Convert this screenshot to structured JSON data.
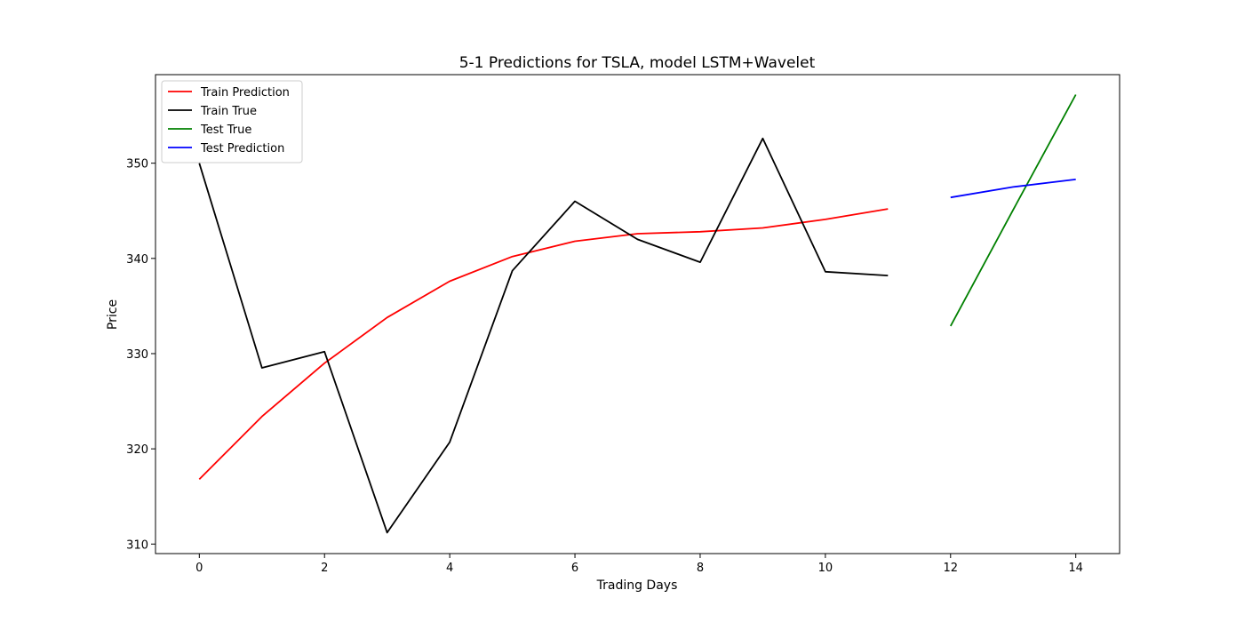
{
  "chart_data": {
    "type": "line",
    "title": "5-1 Predictions for TSLA, model LSTM+Wavelet",
    "xlabel": "Trading Days",
    "ylabel": "Price",
    "xlim": [
      -0.7,
      14.7
    ],
    "ylim": [
      309,
      359.3
    ],
    "xticks": [
      0,
      2,
      4,
      6,
      8,
      10,
      12,
      14
    ],
    "yticks": [
      310,
      320,
      330,
      340,
      350
    ],
    "grid": false,
    "legend_position": "upper-left",
    "series": [
      {
        "name": "Train Prediction",
        "color": "#ff0000",
        "x": [
          0,
          1,
          2,
          3,
          4,
          5,
          6,
          7,
          8,
          9,
          10,
          11
        ],
        "y": [
          316.8,
          323.4,
          329.0,
          333.8,
          337.6,
          340.2,
          341.8,
          342.6,
          342.8,
          343.2,
          344.1,
          345.2
        ]
      },
      {
        "name": "Train True",
        "color": "#000000",
        "x": [
          0,
          1,
          2,
          3,
          4,
          5,
          6,
          7,
          8,
          9,
          10,
          11
        ],
        "y": [
          350.0,
          328.5,
          330.2,
          311.2,
          320.7,
          338.7,
          346.0,
          342.0,
          339.6,
          352.6,
          338.6,
          338.2
        ]
      },
      {
        "name": "Test True",
        "color": "#008000",
        "x": [
          12,
          13,
          14
        ],
        "y": [
          332.9,
          345.1,
          357.2
        ]
      },
      {
        "name": "Test Prediction",
        "color": "#0000ff",
        "x": [
          12,
          13,
          14
        ],
        "y": [
          346.4,
          347.5,
          348.3
        ]
      }
    ]
  }
}
